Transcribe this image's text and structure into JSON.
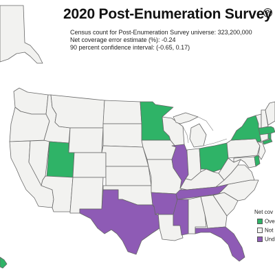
{
  "title": "2020 Post-Enumeration Survey",
  "info_icon": "info-circle-icon",
  "subtitle_lines": [
    "Census count for Post-Enumeration Survey universe: 323,200,000",
    "Net coverage error estimate (%): -0.24",
    "90 percent confidence interval: (-0.65, 0.17)"
  ],
  "legend": {
    "title": "Net cov",
    "items": [
      {
        "label": "Ove",
        "category": "overcount",
        "color": "#2fb367"
      },
      {
        "label": "Not",
        "category": "not_significant",
        "color": "#f2f2f0"
      },
      {
        "label": "Und",
        "category": "undercount",
        "color": "#8e5bb5"
      }
    ]
  },
  "colors": {
    "overcount": "#2fb367",
    "not_significant": "#f2f2f0",
    "undercount": "#8e5bb5",
    "border": "#666666"
  },
  "states": {
    "overcount": [
      "Minnesota",
      "Utah",
      "Ohio",
      "New York",
      "Delaware",
      "Massachusetts",
      "Rhode Island",
      "Hawaii"
    ],
    "undercount": [
      "Illinois",
      "Tennessee",
      "Arkansas",
      "Mississippi",
      "Texas",
      "Florida"
    ],
    "not_significant": [
      "Washington",
      "Oregon",
      "California",
      "Nevada",
      "Idaho",
      "Montana",
      "Wyoming",
      "Colorado",
      "Arizona",
      "New Mexico",
      "North Dakota",
      "South Dakota",
      "Nebraska",
      "Kansas",
      "Oklahoma",
      "Iowa",
      "Missouri",
      "Louisiana",
      "Wisconsin",
      "Michigan",
      "Indiana",
      "Kentucky",
      "Alabama",
      "Georgia",
      "South Carolina",
      "North Carolina",
      "Virginia",
      "West Virginia",
      "Pennsylvania",
      "New Jersey",
      "Maryland",
      "Connecticut",
      "Vermont",
      "New Hampshire",
      "Maine",
      "Alaska"
    ]
  }
}
